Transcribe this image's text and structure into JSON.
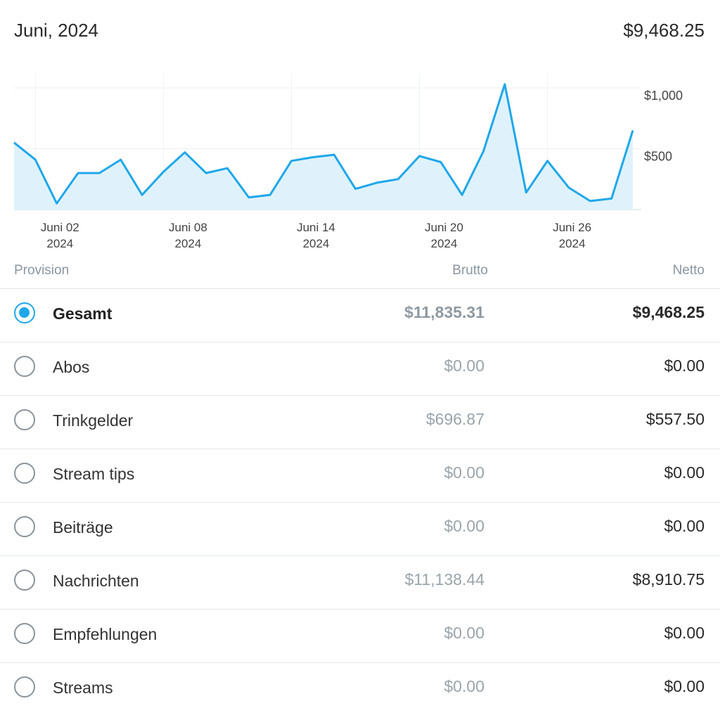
{
  "header": {
    "month": "Juni, 2024",
    "total_net": "$9,468.25"
  },
  "chart_data": {
    "type": "area",
    "x": [
      "2024-06-01",
      "2024-06-02",
      "2024-06-03",
      "2024-06-04",
      "2024-06-05",
      "2024-06-06",
      "2024-06-07",
      "2024-06-08",
      "2024-06-09",
      "2024-06-10",
      "2024-06-11",
      "2024-06-12",
      "2024-06-13",
      "2024-06-14",
      "2024-06-15",
      "2024-06-16",
      "2024-06-17",
      "2024-06-18",
      "2024-06-19",
      "2024-06-20",
      "2024-06-21",
      "2024-06-22",
      "2024-06-23",
      "2024-06-24",
      "2024-06-25",
      "2024-06-26",
      "2024-06-27",
      "2024-06-28",
      "2024-06-29",
      "2024-06-30"
    ],
    "values": [
      550,
      410,
      50,
      300,
      300,
      410,
      120,
      310,
      470,
      300,
      340,
      100,
      120,
      400,
      430,
      450,
      170,
      220,
      250,
      440,
      390,
      120,
      480,
      1030,
      140,
      400,
      180,
      70,
      90,
      650
    ],
    "ylim": [
      0,
      1000
    ],
    "yticks": [
      "$500",
      "$1,000"
    ],
    "xticks": [
      {
        "date": "2024-06-02",
        "label1": "Juni 02",
        "label2": "2024"
      },
      {
        "date": "2024-06-08",
        "label1": "Juni 08",
        "label2": "2024"
      },
      {
        "date": "2024-06-14",
        "label1": "Juni 14",
        "label2": "2024"
      },
      {
        "date": "2024-06-20",
        "label1": "Juni 20",
        "label2": "2024"
      },
      {
        "date": "2024-06-26",
        "label1": "Juni 26",
        "label2": "2024"
      }
    ],
    "line_color": "#1fa7ea",
    "fill_color": "#dff2fc",
    "grid": true
  },
  "table": {
    "columns": {
      "provision": "Provision",
      "brutto": "Brutto",
      "netto": "Netto"
    },
    "rows": [
      {
        "label": "Gesamt",
        "brutto": "$11,835.31",
        "netto": "$9,468.25",
        "selected": true
      },
      {
        "label": "Abos",
        "brutto": "$0.00",
        "netto": "$0.00",
        "selected": false
      },
      {
        "label": "Trinkgelder",
        "brutto": "$696.87",
        "netto": "$557.50",
        "selected": false
      },
      {
        "label": "Stream tips",
        "brutto": "$0.00",
        "netto": "$0.00",
        "selected": false
      },
      {
        "label": "Beiträge",
        "brutto": "$0.00",
        "netto": "$0.00",
        "selected": false
      },
      {
        "label": "Nachrichten",
        "brutto": "$11,138.44",
        "netto": "$8,910.75",
        "selected": false
      },
      {
        "label": "Empfehlungen",
        "brutto": "$0.00",
        "netto": "$0.00",
        "selected": false
      },
      {
        "label": "Streams",
        "brutto": "$0.00",
        "netto": "$0.00",
        "selected": false
      }
    ]
  },
  "colors": {
    "accent": "#1fa7ea",
    "muted": "#8a96a0"
  }
}
